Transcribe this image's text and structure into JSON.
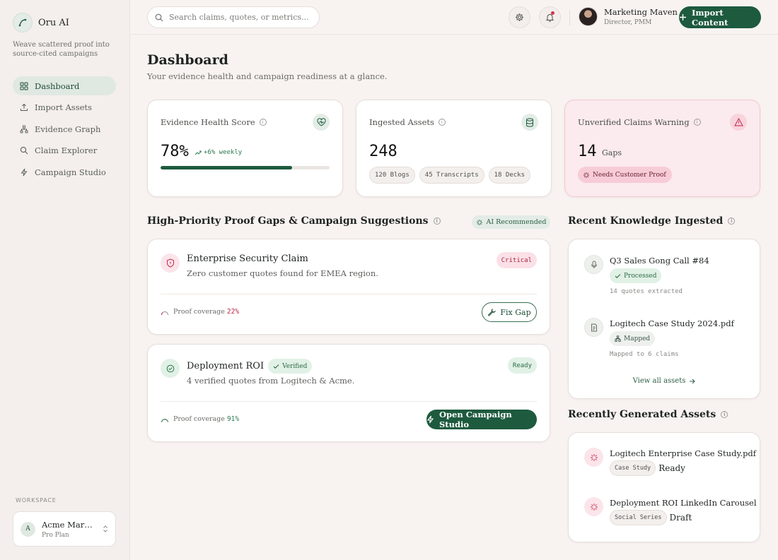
{
  "colors": {
    "accent": "#1d5a3e",
    "critical": "#c0264a",
    "success": "#2e7a52",
    "warning_bg": "#fbeaee"
  },
  "app": {
    "name": "Oru AI",
    "tagline": "Weave scattered proof into source-cited campaigns"
  },
  "sidebar": {
    "items": [
      {
        "label": "Dashboard",
        "icon": "grid-icon",
        "active": true
      },
      {
        "label": "Import Assets",
        "icon": "upload-icon"
      },
      {
        "label": "Evidence Graph",
        "icon": "network-icon"
      },
      {
        "label": "Claim Explorer",
        "icon": "search-icon"
      },
      {
        "label": "Campaign Studio",
        "icon": "lightning-icon"
      }
    ],
    "workspace_label": "WORKSPACE",
    "workspace": {
      "initial": "A",
      "name": "Acme Marketing",
      "plan": "Pro Plan"
    }
  },
  "topbar": {
    "search_placeholder": "Search claims, quotes, or metrics...",
    "user": {
      "name": "Marketing Maven",
      "role": "Director, PMM"
    },
    "import_label": "Import Content"
  },
  "page": {
    "title": "Dashboard",
    "subtitle": "Your evidence health and campaign readiness at a glance."
  },
  "stats": {
    "health": {
      "title": "Evidence Health Score",
      "value": "78%",
      "delta": "+6% weekly",
      "progress": 0.78
    },
    "assets": {
      "title": "Ingested Assets",
      "value": "248",
      "chips": [
        "120 Blogs",
        "45 Transcripts",
        "18 Decks"
      ]
    },
    "unverified": {
      "title": "Unverified Claims Warning",
      "value": "14",
      "unit": "Gaps",
      "badge": "Needs Customer Proof"
    }
  },
  "gaps_section": {
    "title": "High-Priority Proof Gaps & Campaign Suggestions",
    "ai_label": "AI Recommended",
    "items": [
      {
        "title": "Enterprise Security Claim",
        "desc": "Zero customer quotes found for EMEA region.",
        "status": "Critical",
        "coverage_label": "Proof coverage",
        "coverage": "22%",
        "action": "Fix Gap"
      },
      {
        "title": "Deployment ROI",
        "verified": "Verified",
        "desc": "4 verified quotes from Logitech & Acme.",
        "status": "Ready",
        "coverage_label": "Proof coverage",
        "coverage": "91%",
        "action": "Open Campaign Studio"
      }
    ]
  },
  "knowledge": {
    "title": "Recent Knowledge Ingested",
    "items": [
      {
        "title": "Q3 Sales Gong Call #84",
        "badge": "Processed",
        "meta": "14 quotes extracted",
        "icon": "microphone-icon"
      },
      {
        "title": "Logitech Case Study 2024.pdf",
        "badge": "Mapped",
        "meta": "Mapped to 6 claims",
        "icon": "document-icon"
      }
    ],
    "view_all": "View all assets"
  },
  "generated": {
    "title": "Recently Generated Assets",
    "items": [
      {
        "title": "Logitech Enterprise Case Study.pdf",
        "tag": "Case Study",
        "status": "Ready"
      },
      {
        "title": "Deployment ROI LinkedIn Carousel",
        "tag": "Social Series",
        "status": "Draft"
      }
    ]
  }
}
